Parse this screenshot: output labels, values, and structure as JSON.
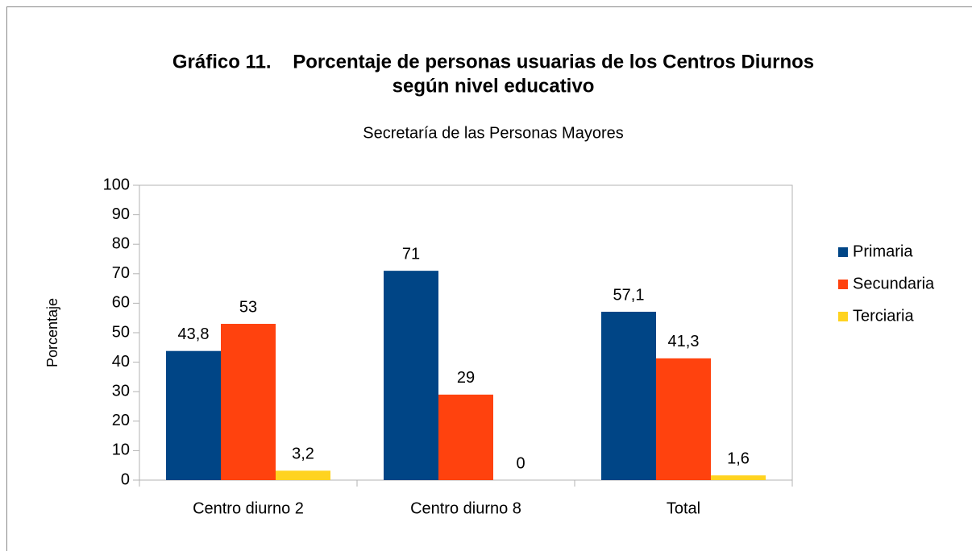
{
  "chart_data": {
    "type": "bar",
    "title": [
      "Gráfico 11.    Porcentaje de personas usuarias de los Centros Diurnos",
      "según nivel educativo"
    ],
    "subtitle": "Secretaría de las Personas Mayores",
    "y_label": "Porcentaje",
    "categories": [
      "Centro diurno 2",
      "Centro diurno 8",
      "Total"
    ],
    "series": [
      {
        "name": "Primaria",
        "color": "#004586",
        "values": [
          43.8,
          71,
          57.1
        ],
        "value_labels": [
          "43,8",
          "71",
          "57,1"
        ]
      },
      {
        "name": "Secundaria",
        "color": "#ff420e",
        "values": [
          53,
          29,
          41.3
        ],
        "value_labels": [
          "53",
          "29",
          "41,3"
        ]
      },
      {
        "name": "Terciaria",
        "color": "#ffd320",
        "values": [
          3.2,
          0,
          1.6
        ],
        "value_labels": [
          "3,2",
          "0",
          "1,6"
        ]
      }
    ],
    "ylim": [
      0,
      100
    ],
    "yticks": [
      0,
      10,
      20,
      30,
      40,
      50,
      60,
      70,
      80,
      90,
      100
    ],
    "legend": "right"
  }
}
